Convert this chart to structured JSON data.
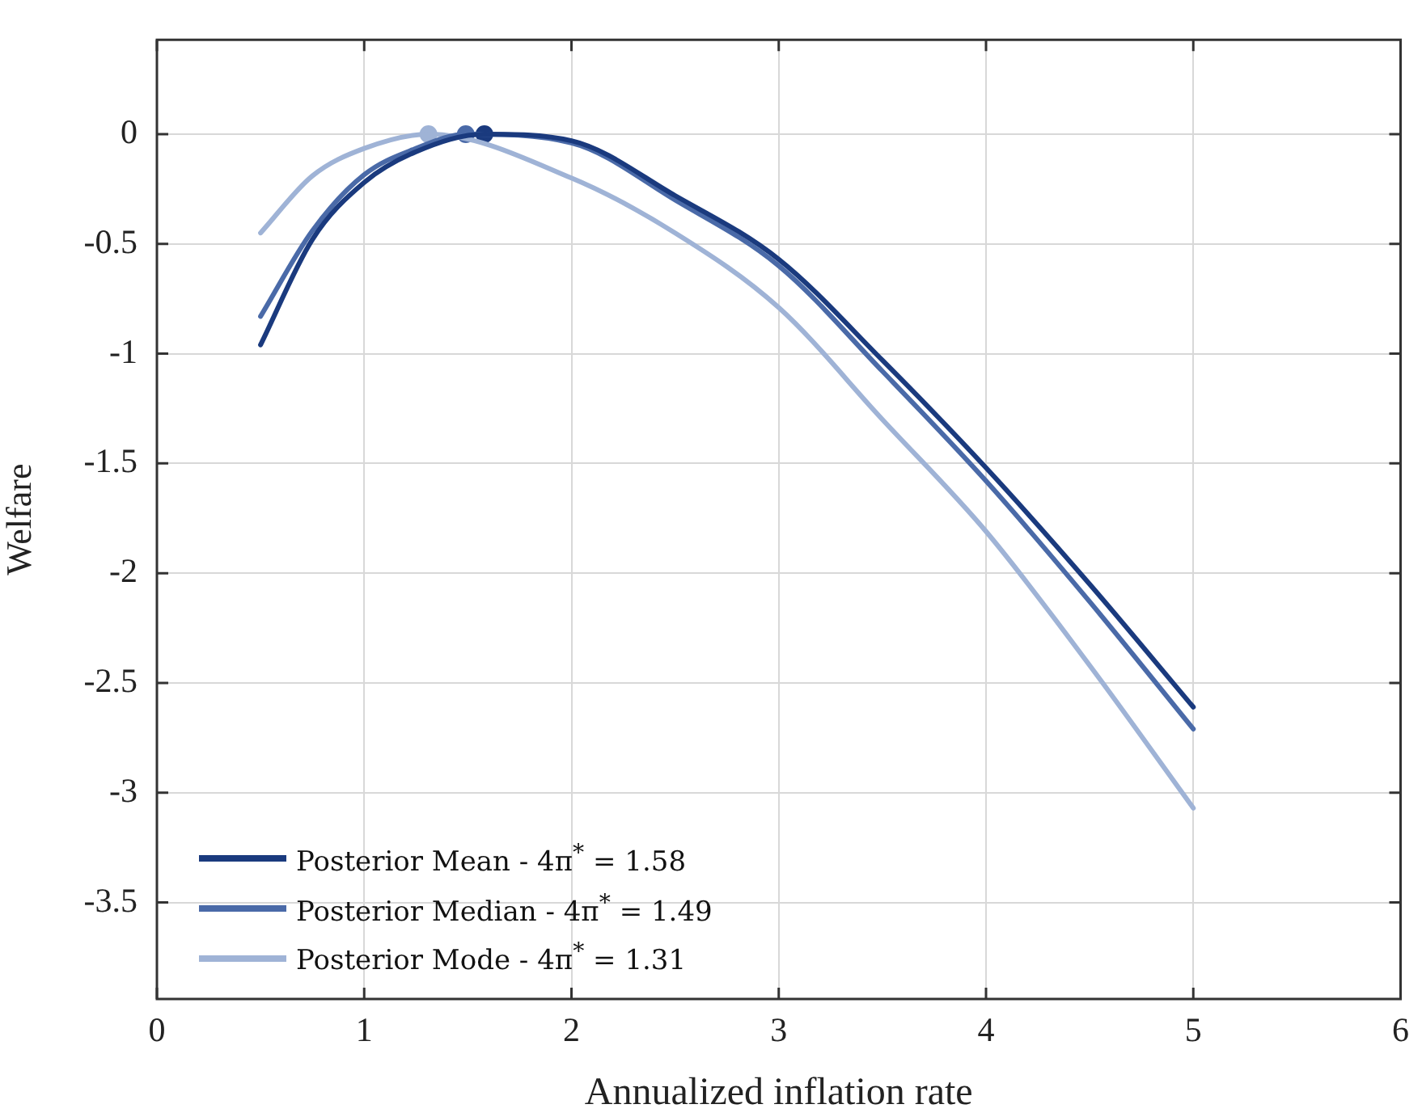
{
  "chart_data": {
    "type": "line",
    "xlabel": "Annualized inflation rate",
    "ylabel": "Welfare",
    "xlim": [
      0,
      6
    ],
    "xticks": [
      0,
      1,
      2,
      3,
      4,
      5,
      6
    ],
    "ylim": [
      -3.94,
      0.43
    ],
    "yticks": [
      -3.5,
      -3,
      -2.5,
      -2,
      -1.5,
      -1,
      -0.5,
      0
    ],
    "grid": true,
    "legend": "bottom left",
    "marker": "none",
    "line_style": "solid",
    "series": [
      {
        "name": "Posterior Mean - 4π$^{*}$ = 1.58",
        "color": "#1a3a7e",
        "x": [
          0.5,
          0.75,
          1,
          1.25,
          1.58,
          2,
          2.5,
          3,
          3.5,
          4,
          4.5,
          5
        ],
        "values": [
          -0.96,
          -0.48,
          -0.22,
          -0.08,
          0,
          -0.03,
          -0.28,
          -0.57,
          -1.03,
          -1.52,
          -2.05,
          -2.61
        ]
      },
      {
        "name": "Posterior Median - 4π$^{*}$ = 1.49",
        "color": "#4a6aa8",
        "x": [
          0.5,
          0.75,
          1,
          1.25,
          1.49,
          2,
          2.5,
          3,
          3.5,
          4,
          4.5,
          5
        ],
        "values": [
          -0.83,
          -0.44,
          -0.185,
          -0.065,
          0,
          -0.04,
          -0.3,
          -0.6,
          -1.08,
          -1.58,
          -2.13,
          -2.71
        ]
      },
      {
        "name": "Posterior Mode - 4π$^{*}$ = 1.31",
        "color": "#9fb3d6",
        "x": [
          0.5,
          0.75,
          1,
          1.31,
          2,
          2.5,
          3,
          3.5,
          4,
          4.5,
          5
        ],
        "values": [
          -0.45,
          -0.19,
          -0.065,
          0,
          -0.2,
          -0.45,
          -0.79,
          -1.3,
          -1.81,
          -2.42,
          -3.07
        ]
      },
      {
        "type": "scatter",
        "marker": "circle",
        "colors": [
          "#9fb3d6",
          "#4a6aa8",
          "#1a3a7e"
        ],
        "x": [
          1.31,
          1.49,
          1.58
        ],
        "values": [
          0,
          0,
          0
        ]
      }
    ]
  }
}
